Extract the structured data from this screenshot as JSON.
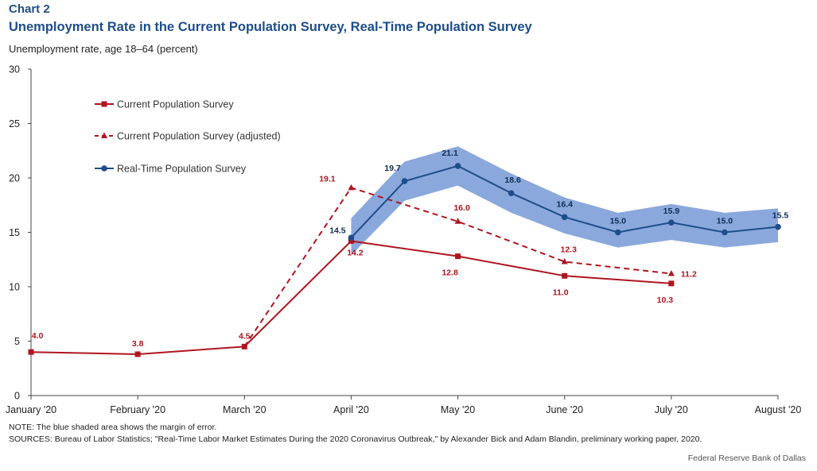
{
  "header": {
    "label": "Chart 2",
    "title": "Unemployment Rate in the Current Population Survey, Real-Time Population Survey",
    "subtitle": "Unemployment rate, age 18–64 (percent)"
  },
  "footer": {
    "note": "NOTE: The blue shaded area shows the margin of error.",
    "sources": "SOURCES: Bureau of Labor Statistics; \"Real-Time Labor Market Estimates During the 2020 Coronavirus Outbreak,\" by Alexander Bick and Adam Blandin, preliminary working paper, 2020.",
    "credit": "Federal Reserve Bank of Dallas"
  },
  "chart_data": {
    "type": "line",
    "ylim": [
      0,
      30
    ],
    "yticks": [
      0,
      5,
      10,
      15,
      20,
      25,
      30
    ],
    "xticks": [
      {
        "x": 0,
        "label": "January '20"
      },
      {
        "x": 1,
        "label": "February '20"
      },
      {
        "x": 2,
        "label": "March '20"
      },
      {
        "x": 3,
        "label": "April '20"
      },
      {
        "x": 4,
        "label": "May '20"
      },
      {
        "x": 5,
        "label": "June '20"
      },
      {
        "x": 6,
        "label": "July '20"
      },
      {
        "x": 7,
        "label": "August '20"
      }
    ],
    "xlim": [
      0,
      7
    ],
    "legend_position": "upper-left",
    "series": [
      {
        "name": "Current Population Survey",
        "color": "#b0151f",
        "style": "solid",
        "marker": "square",
        "x": [
          0,
          1,
          2,
          3,
          4,
          5,
          6
        ],
        "y": [
          4.0,
          3.8,
          4.5,
          14.2,
          12.8,
          11.0,
          10.3
        ],
        "labels": [
          "4.0",
          "3.8",
          "4.5",
          "14.2",
          "12.8",
          "11.0",
          "10.3"
        ]
      },
      {
        "name": "Current Population Survey (adjusted)",
        "color": "#b0151f",
        "style": "dashed",
        "marker": "triangle",
        "x": [
          2,
          3,
          4,
          5,
          6
        ],
        "y": [
          4.5,
          19.1,
          16.0,
          12.3,
          11.2
        ],
        "labels": [
          "",
          "19.1",
          "16.0",
          "12.3",
          "11.2"
        ]
      },
      {
        "name": "Real-Time Population Survey",
        "color": "#1d4e89",
        "style": "solid",
        "marker": "circle",
        "x": [
          3,
          3.5,
          4,
          4.5,
          5,
          5.5,
          6,
          6.5,
          7
        ],
        "y": [
          14.5,
          19.7,
          21.1,
          18.6,
          16.4,
          15.0,
          15.9,
          15.0,
          15.5
        ],
        "labels": [
          "14.5",
          "19.7",
          "21.1",
          "18.6",
          "16.4",
          "15.0",
          "15.9",
          "15.0",
          "15.5"
        ],
        "band_upper": [
          16.3,
          21.5,
          22.9,
          20.4,
          18.2,
          16.8,
          17.6,
          16.8,
          17.2
        ],
        "band_lower": [
          12.9,
          17.9,
          19.3,
          16.8,
          14.9,
          13.6,
          14.3,
          13.6,
          14.1
        ]
      }
    ],
    "band_color": "#8aa8dc"
  }
}
